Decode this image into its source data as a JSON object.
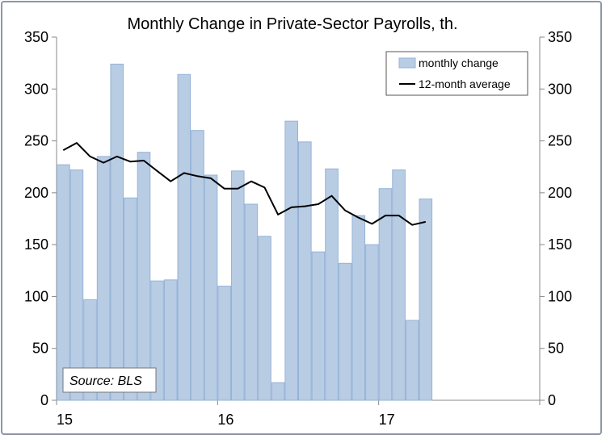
{
  "chart_data": {
    "type": "bar",
    "title": "Monthly Change in Private-Sector Payrolls, th.",
    "source": "Source: BLS",
    "xlabel": "",
    "ylabel": "",
    "ylim": [
      0,
      350
    ],
    "yticks": [
      "0",
      "50",
      "100",
      "150",
      "200",
      "250",
      "300",
      "350"
    ],
    "xticks": [
      {
        "label": "15",
        "value": 0
      },
      {
        "label": "16",
        "value": 12
      },
      {
        "label": "17",
        "value": 24
      }
    ],
    "xlim": [
      0,
      36
    ],
    "legend_position": "top-right",
    "colors": {
      "bar": "#b8cce4",
      "bar_edge": "#95b3d7",
      "line": "#000000",
      "axis": "#888888"
    },
    "series": [
      {
        "name": "monthly change",
        "type": "bar",
        "values": [
          227,
          222,
          97,
          235,
          324,
          195,
          239,
          115,
          116,
          314,
          260,
          217,
          110,
          221,
          189,
          158,
          17,
          269,
          249,
          143,
          223,
          132,
          178,
          150,
          204,
          222,
          77,
          194
        ]
      },
      {
        "name": "12-month average",
        "type": "line",
        "values": [
          241,
          248,
          235,
          229,
          235,
          230,
          231,
          221,
          211,
          219,
          216,
          214,
          204,
          204,
          211,
          205,
          179,
          186,
          187,
          189,
          197,
          183,
          176,
          170,
          178,
          178,
          169,
          172
        ]
      }
    ]
  }
}
